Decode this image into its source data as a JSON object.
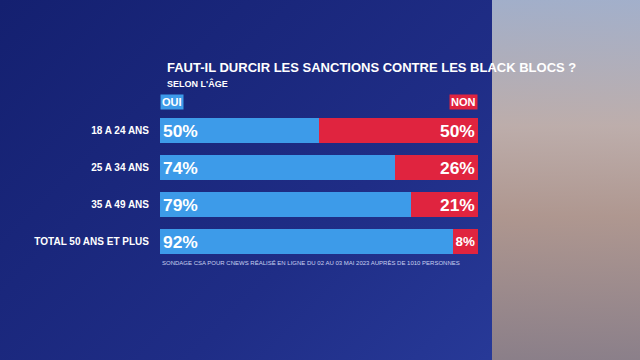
{
  "chart_data": {
    "type": "bar",
    "orientation": "horizontal",
    "stacked": true,
    "title": "FAUT-IL DURCIR LES SANCTIONS CONTRE LES BLACK BLOCS ?",
    "subtitle": "SELON L'ÂGE",
    "source": "SONDAGE CSA POUR CNEWS RÉALISÉ EN LIGNE DU 02 AU 03 MAI 2023 AUPRÈS DE 1010 PERSONNES",
    "categories": [
      "18 A 24 ANS",
      "25 A 34 ANS",
      "35 A 49 ANS",
      "TOTAL 50 ANS ET PLUS"
    ],
    "series": [
      {
        "name": "OUI",
        "color": "#3d9be9",
        "values": [
          50,
          74,
          79,
          92
        ],
        "value_labels": [
          "50%",
          "74%",
          "79%",
          "92%"
        ]
      },
      {
        "name": "NON",
        "color": "#e0243f",
        "values": [
          50,
          26,
          21,
          8
        ],
        "value_labels": [
          "50%",
          "26%",
          "21%",
          "8%"
        ]
      }
    ],
    "xlim": [
      0,
      100
    ],
    "data_labels": true,
    "tick_labels": "y",
    "grid": false
  }
}
